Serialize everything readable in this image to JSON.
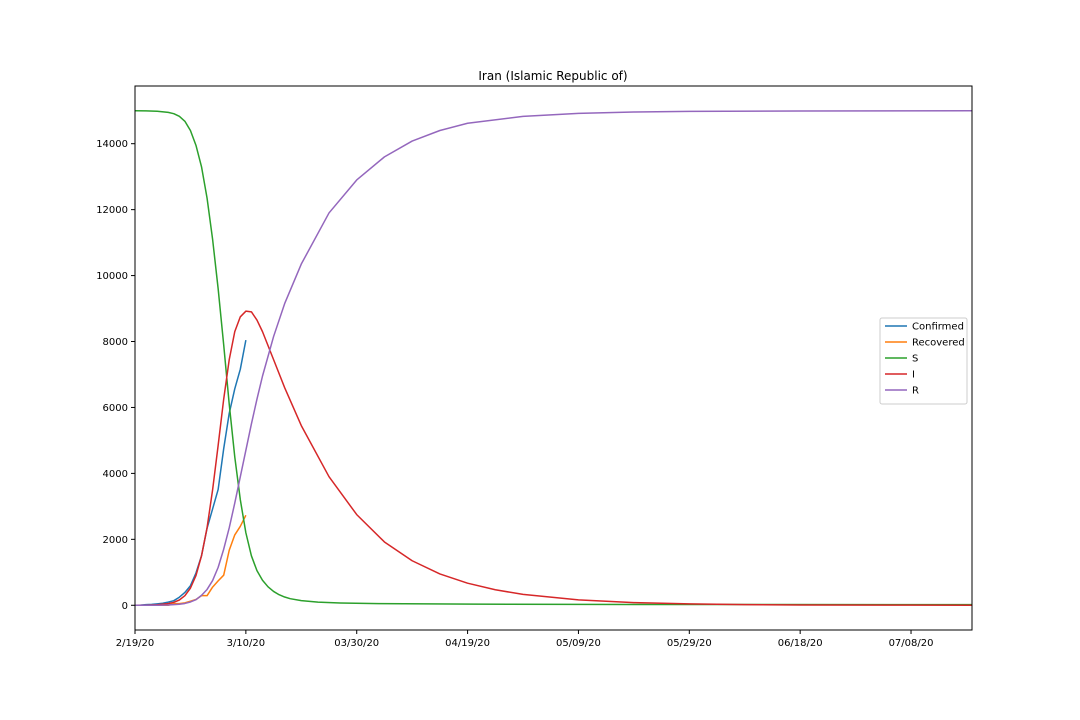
{
  "chart_data": {
    "type": "line",
    "title": "Iran (Islamic Republic of)",
    "xlabel": "",
    "ylabel": "",
    "x_start": "2/19/20",
    "x_end": "7/19/20",
    "xlim": [
      "2/19/20",
      "7/19/20"
    ],
    "ylim": [
      -750,
      15750
    ],
    "legend_position": "center-right",
    "grid": false,
    "x_ticks": [
      {
        "date": "2/19/20",
        "label": "2/19/20"
      },
      {
        "date": "3/10/20",
        "label": "3/10/20"
      },
      {
        "date": "3/30/20",
        "label": "03/30/20"
      },
      {
        "date": "4/19/20",
        "label": "04/19/20"
      },
      {
        "date": "5/9/20",
        "label": "05/09/20"
      },
      {
        "date": "5/29/20",
        "label": "05/29/20"
      },
      {
        "date": "6/18/20",
        "label": "06/18/20"
      },
      {
        "date": "7/8/20",
        "label": "07/08/20"
      }
    ],
    "y_ticks": [
      {
        "value": 0,
        "label": "0"
      },
      {
        "value": 2000,
        "label": "2000"
      },
      {
        "value": 4000,
        "label": "4000"
      },
      {
        "value": 6000,
        "label": "6000"
      },
      {
        "value": 8000,
        "label": "8000"
      },
      {
        "value": 10000,
        "label": "10000"
      },
      {
        "value": 12000,
        "label": "12000"
      },
      {
        "value": 14000,
        "label": "14000"
      }
    ],
    "series": [
      {
        "name": "Confirmed",
        "color": "#1f77b4",
        "points": [
          [
            "2/19/20",
            2
          ],
          [
            "2/20/20",
            5
          ],
          [
            "2/21/20",
            18
          ],
          [
            "2/22/20",
            28
          ],
          [
            "2/23/20",
            43
          ],
          [
            "2/24/20",
            61
          ],
          [
            "2/25/20",
            95
          ],
          [
            "2/26/20",
            139
          ],
          [
            "2/27/20",
            245
          ],
          [
            "2/28/20",
            388
          ],
          [
            "2/29/20",
            593
          ],
          [
            "3/1/20",
            978
          ],
          [
            "3/2/20",
            1501
          ],
          [
            "3/3/20",
            2336
          ],
          [
            "3/4/20",
            2922
          ],
          [
            "3/5/20",
            3513
          ],
          [
            "3/6/20",
            4747
          ],
          [
            "3/7/20",
            5823
          ],
          [
            "3/8/20",
            6566
          ],
          [
            "3/9/20",
            7161
          ],
          [
            "3/10/20",
            8042
          ]
        ]
      },
      {
        "name": "Recovered",
        "color": "#ff7f0e",
        "points": [
          [
            "2/19/20",
            0
          ],
          [
            "2/20/20",
            0
          ],
          [
            "2/21/20",
            0
          ],
          [
            "2/22/20",
            0
          ],
          [
            "2/23/20",
            0
          ],
          [
            "2/24/20",
            0
          ],
          [
            "2/25/20",
            0
          ],
          [
            "2/26/20",
            49
          ],
          [
            "2/27/20",
            49
          ],
          [
            "2/28/20",
            73
          ],
          [
            "2/29/20",
            123
          ],
          [
            "3/1/20",
            175
          ],
          [
            "3/2/20",
            291
          ],
          [
            "3/3/20",
            291
          ],
          [
            "3/4/20",
            552
          ],
          [
            "3/5/20",
            739
          ],
          [
            "3/6/20",
            913
          ],
          [
            "3/7/20",
            1669
          ],
          [
            "3/8/20",
            2134
          ],
          [
            "3/9/20",
            2394
          ],
          [
            "3/10/20",
            2731
          ]
        ]
      },
      {
        "name": "S",
        "color": "#2ca02c",
        "points": [
          [
            "2/19/20",
            15000
          ],
          [
            "2/21/20",
            14995
          ],
          [
            "2/23/20",
            14985
          ],
          [
            "2/25/20",
            14950
          ],
          [
            "2/26/20",
            14910
          ],
          [
            "2/27/20",
            14830
          ],
          [
            "2/28/20",
            14680
          ],
          [
            "2/29/20",
            14400
          ],
          [
            "3/1/20",
            13950
          ],
          [
            "3/2/20",
            13300
          ],
          [
            "3/3/20",
            12350
          ],
          [
            "3/4/20",
            11100
          ],
          [
            "3/5/20",
            9600
          ],
          [
            "3/6/20",
            7900
          ],
          [
            "3/7/20",
            6100
          ],
          [
            "3/8/20",
            4500
          ],
          [
            "3/9/20",
            3200
          ],
          [
            "3/10/20",
            2200
          ],
          [
            "3/11/20",
            1500
          ],
          [
            "3/12/20",
            1050
          ],
          [
            "3/13/20",
            760
          ],
          [
            "3/14/20",
            560
          ],
          [
            "3/15/20",
            420
          ],
          [
            "3/16/20",
            320
          ],
          [
            "3/17/20",
            250
          ],
          [
            "3/18/20",
            200
          ],
          [
            "3/20/20",
            140
          ],
          [
            "3/23/20",
            95
          ],
          [
            "3/27/20",
            70
          ],
          [
            "4/3/20",
            50
          ],
          [
            "4/20/20",
            35
          ],
          [
            "5/20/20",
            25
          ],
          [
            "7/19/20",
            20
          ]
        ]
      },
      {
        "name": "I",
        "color": "#d62728",
        "points": [
          [
            "2/19/20",
            2
          ],
          [
            "2/21/20",
            6
          ],
          [
            "2/23/20",
            16
          ],
          [
            "2/25/20",
            50
          ],
          [
            "2/26/20",
            90
          ],
          [
            "2/27/20",
            160
          ],
          [
            "2/28/20",
            290
          ],
          [
            "2/29/20",
            520
          ],
          [
            "3/1/20",
            900
          ],
          [
            "3/2/20",
            1500
          ],
          [
            "3/3/20",
            2350
          ],
          [
            "3/4/20",
            3500
          ],
          [
            "3/5/20",
            4850
          ],
          [
            "3/6/20",
            6250
          ],
          [
            "3/7/20",
            7450
          ],
          [
            "3/8/20",
            8300
          ],
          [
            "3/9/20",
            8750
          ],
          [
            "3/10/20",
            8920
          ],
          [
            "3/11/20",
            8900
          ],
          [
            "3/12/20",
            8650
          ],
          [
            "3/13/20",
            8300
          ],
          [
            "3/15/20",
            7450
          ],
          [
            "3/17/20",
            6600
          ],
          [
            "3/20/20",
            5450
          ],
          [
            "3/25/20",
            3900
          ],
          [
            "3/30/20",
            2750
          ],
          [
            "4/4/20",
            1920
          ],
          [
            "4/9/20",
            1350
          ],
          [
            "4/14/20",
            950
          ],
          [
            "4/19/20",
            670
          ],
          [
            "4/24/20",
            470
          ],
          [
            "4/29/20",
            330
          ],
          [
            "5/9/20",
            165
          ],
          [
            "5/19/20",
            82
          ],
          [
            "5/29/20",
            41
          ],
          [
            "6/8/20",
            20
          ],
          [
            "6/18/20",
            10
          ],
          [
            "7/8/20",
            3
          ],
          [
            "7/19/20",
            1
          ]
        ]
      },
      {
        "name": "R",
        "color": "#9467bd",
        "points": [
          [
            "2/19/20",
            0
          ],
          [
            "2/23/20",
            2
          ],
          [
            "2/25/20",
            10
          ],
          [
            "2/27/20",
            30
          ],
          [
            "2/28/20",
            55
          ],
          [
            "2/29/20",
            100
          ],
          [
            "3/1/20",
            170
          ],
          [
            "3/2/20",
            300
          ],
          [
            "3/3/20",
            480
          ],
          [
            "3/4/20",
            750
          ],
          [
            "3/5/20",
            1150
          ],
          [
            "3/6/20",
            1700
          ],
          [
            "3/7/20",
            2350
          ],
          [
            "3/8/20",
            3100
          ],
          [
            "3/9/20",
            3900
          ],
          [
            "3/10/20",
            4700
          ],
          [
            "3/11/20",
            5500
          ],
          [
            "3/12/20",
            6250
          ],
          [
            "3/13/20",
            6950
          ],
          [
            "3/15/20",
            8150
          ],
          [
            "3/17/20",
            9150
          ],
          [
            "3/20/20",
            10350
          ],
          [
            "3/25/20",
            11900
          ],
          [
            "3/30/20",
            12900
          ],
          [
            "4/4/20",
            13600
          ],
          [
            "4/9/20",
            14080
          ],
          [
            "4/14/20",
            14400
          ],
          [
            "4/19/20",
            14620
          ],
          [
            "4/29/20",
            14830
          ],
          [
            "5/9/20",
            14920
          ],
          [
            "5/19/20",
            14960
          ],
          [
            "5/29/20",
            14980
          ],
          [
            "6/18/20",
            14990
          ],
          [
            "7/19/20",
            15000
          ]
        ]
      }
    ]
  }
}
